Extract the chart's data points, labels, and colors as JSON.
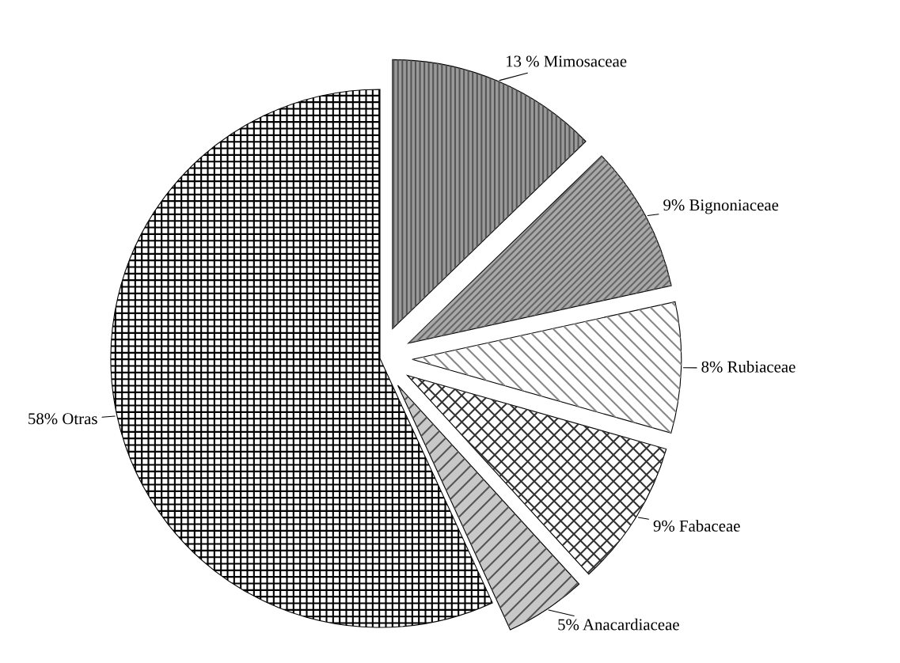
{
  "chart_data": {
    "type": "pie",
    "categories": [
      "Mimosaceae",
      "Bignoniaceae",
      "Rubiaceae",
      "Fabaceae",
      "Anacardiaceae",
      "Otras"
    ],
    "values": [
      13,
      9,
      8,
      9,
      5,
      58
    ],
    "value_labels": [
      "13 %",
      "9%",
      "8%",
      "9%",
      "5%",
      "58%"
    ],
    "colors": [
      "#9a9a9a",
      "#a8a8a8",
      "#ffffff",
      "#ffffff",
      "#c8c8c8",
      "#ffffff"
    ]
  }
}
